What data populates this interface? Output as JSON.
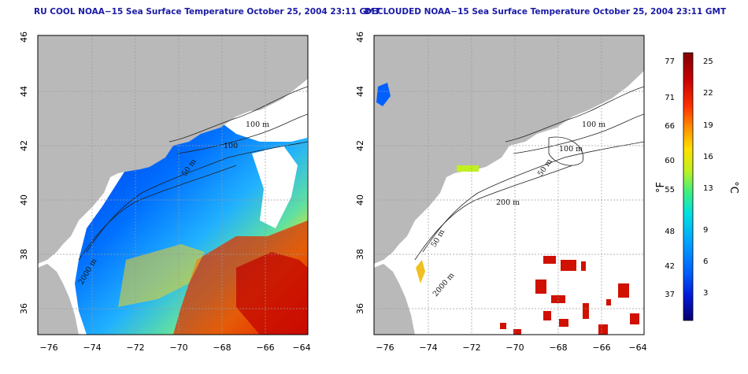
{
  "maps": [
    {
      "title": "RU COOL NOAA−15 Sea Surface Temperature October 25, 2004 23:11 GMT",
      "lat_ticks": [
        "46",
        "44",
        "42",
        "40",
        "38",
        "36"
      ],
      "lon_ticks": [
        "−76",
        "−74",
        "−72",
        "−70",
        "−68",
        "−66",
        "−64"
      ],
      "contour_labels": [
        "100 m",
        "100",
        "50 m",
        "2000 m"
      ]
    },
    {
      "title": "DECLOUDED NOAA−15 Sea Surface Temperature October 25, 2004 23:11 GMT",
      "lat_ticks": [
        "46",
        "44",
        "42",
        "40",
        "38",
        "36"
      ],
      "lon_ticks": [
        "−76",
        "−74",
        "−72",
        "−70",
        "−68",
        "−66",
        "−64"
      ],
      "contour_labels": [
        "100 m",
        "100 m",
        "50 m",
        "200 m",
        "50 m",
        "2000 m"
      ]
    }
  ],
  "colorbar": {
    "fahrenheit_ticks": [
      "77",
      "71",
      "66",
      "60",
      "55",
      "48",
      "42",
      "37"
    ],
    "celsius_ticks": [
      "25",
      "22",
      "19",
      "16",
      "13",
      "9",
      "6",
      "3"
    ],
    "fahrenheit_unit": "°F",
    "celsius_unit": "°C",
    "colors": [
      "#08006e",
      "#0018d8",
      "#0060ff",
      "#00a8ff",
      "#00e0e0",
      "#40f080",
      "#c0f020",
      "#ffe000",
      "#ff9000",
      "#ff3000",
      "#c80000",
      "#820000"
    ]
  },
  "colors": {
    "land": "#b9b9b9",
    "frame": "#000000",
    "grid": "#9a9a9a"
  }
}
